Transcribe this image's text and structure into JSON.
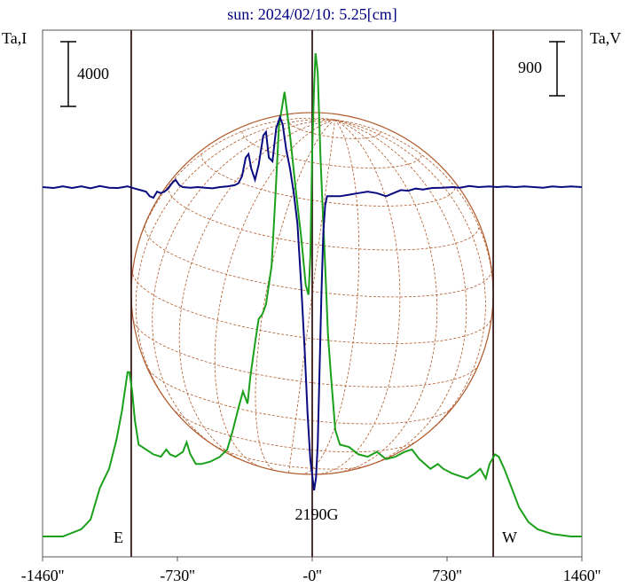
{
  "chart_data": {
    "type": "line",
    "title": "sun: 2024/02/10: 5.25[cm]",
    "left_axis_label": "Ta,I",
    "right_axis_label": "Ta,V",
    "left_scale_bar": "4000",
    "right_scale_bar": "900",
    "xlim": [
      -1460,
      1460
    ],
    "x_ticks": [
      {
        "value": -1460,
        "label": "-1460''"
      },
      {
        "value": -730,
        "label": "-730''"
      },
      {
        "value": 0,
        "label": "-0''"
      },
      {
        "value": 730,
        "label": "730''"
      },
      {
        "value": 1460,
        "label": "1460''"
      }
    ],
    "limb_markers": [
      {
        "value": -980,
        "label": "E"
      },
      {
        "value": 0,
        "label": ""
      },
      {
        "value": 980,
        "label": "W"
      }
    ],
    "field_annotation": "2190G",
    "solar_disk_radius_arcsec": 980,
    "colors": {
      "intensity": "#1aa01a",
      "polarization": "#0a0a80",
      "disk": "#b05a2a",
      "markers": "#3a1a1a",
      "title": "#000080"
    },
    "series": [
      {
        "key": "intensity",
        "relative_scale": [
          0,
          1
        ],
        "points": [
          [
            -1460,
            0.0
          ],
          [
            -1350,
            0.0
          ],
          [
            -1250,
            0.015
          ],
          [
            -1200,
            0.035
          ],
          [
            -1150,
            0.1
          ],
          [
            -1100,
            0.14
          ],
          [
            -1060,
            0.2
          ],
          [
            -1030,
            0.26
          ],
          [
            -1000,
            0.34
          ],
          [
            -990,
            0.34
          ],
          [
            -975,
            0.3
          ],
          [
            -960,
            0.24
          ],
          [
            -940,
            0.19
          ],
          [
            -900,
            0.18
          ],
          [
            -860,
            0.17
          ],
          [
            -820,
            0.165
          ],
          [
            -790,
            0.18
          ],
          [
            -770,
            0.17
          ],
          [
            -740,
            0.165
          ],
          [
            -700,
            0.175
          ],
          [
            -680,
            0.195
          ],
          [
            -660,
            0.17
          ],
          [
            -630,
            0.15
          ],
          [
            -600,
            0.15
          ],
          [
            -550,
            0.155
          ],
          [
            -500,
            0.165
          ],
          [
            -460,
            0.18
          ],
          [
            -430,
            0.22
          ],
          [
            -400,
            0.265
          ],
          [
            -375,
            0.3
          ],
          [
            -350,
            0.275
          ],
          [
            -335,
            0.33
          ],
          [
            -310,
            0.4
          ],
          [
            -290,
            0.45
          ],
          [
            -270,
            0.46
          ],
          [
            -250,
            0.48
          ],
          [
            -220,
            0.56
          ],
          [
            -200,
            0.7
          ],
          [
            -180,
            0.85
          ],
          [
            -150,
            0.92
          ],
          [
            -120,
            0.83
          ],
          [
            -90,
            0.72
          ],
          [
            -60,
            0.62
          ],
          [
            -35,
            0.52
          ],
          [
            -20,
            0.5
          ],
          [
            -10,
            0.58
          ],
          [
            0,
            0.8
          ],
          [
            10,
            0.93
          ],
          [
            18,
            1.0
          ],
          [
            30,
            0.96
          ],
          [
            45,
            0.78
          ],
          [
            70,
            0.56
          ],
          [
            85,
            0.42
          ],
          [
            100,
            0.34
          ],
          [
            125,
            0.22
          ],
          [
            150,
            0.19
          ],
          [
            200,
            0.185
          ],
          [
            250,
            0.17
          ],
          [
            300,
            0.165
          ],
          [
            350,
            0.175
          ],
          [
            400,
            0.16
          ],
          [
            450,
            0.165
          ],
          [
            500,
            0.175
          ],
          [
            540,
            0.18
          ],
          [
            580,
            0.16
          ],
          [
            640,
            0.14
          ],
          [
            680,
            0.15
          ],
          [
            710,
            0.14
          ],
          [
            760,
            0.13
          ],
          [
            800,
            0.125
          ],
          [
            840,
            0.12
          ],
          [
            880,
            0.13
          ],
          [
            910,
            0.14
          ],
          [
            940,
            0.12
          ],
          [
            960,
            0.15
          ],
          [
            990,
            0.17
          ],
          [
            1010,
            0.165
          ],
          [
            1040,
            0.14
          ],
          [
            1080,
            0.1
          ],
          [
            1120,
            0.06
          ],
          [
            1170,
            0.03
          ],
          [
            1220,
            0.015
          ],
          [
            1300,
            0.005
          ],
          [
            1400,
            0.0
          ],
          [
            1460,
            0.0
          ]
        ]
      },
      {
        "key": "polarization",
        "relative_scale": [
          -1,
          1
        ],
        "points": [
          [
            -1460,
            0.0
          ],
          [
            -1400,
            -0.003
          ],
          [
            -1350,
            0.002
          ],
          [
            -1300,
            -0.003
          ],
          [
            -1250,
            0.002
          ],
          [
            -1200,
            -0.004
          ],
          [
            -1150,
            0.003
          ],
          [
            -1100,
            -0.002
          ],
          [
            -1050,
            -0.003
          ],
          [
            -1000,
            0.002
          ],
          [
            -960,
            -0.005
          ],
          [
            -930,
            -0.01
          ],
          [
            -900,
            -0.015
          ],
          [
            -880,
            -0.03
          ],
          [
            -860,
            -0.035
          ],
          [
            -840,
            -0.015
          ],
          [
            -820,
            -0.02
          ],
          [
            -800,
            -0.015
          ],
          [
            -780,
            -0.005
          ],
          [
            -760,
            0.01
          ],
          [
            -740,
            0.02
          ],
          [
            -720,
            0.005
          ],
          [
            -700,
            0.0
          ],
          [
            -660,
            -0.002
          ],
          [
            -620,
            0.0
          ],
          [
            -580,
            -0.002
          ],
          [
            -540,
            -0.004
          ],
          [
            -500,
            0.0
          ],
          [
            -460,
            0.002
          ],
          [
            -420,
            0.005
          ],
          [
            -400,
            0.01
          ],
          [
            -380,
            0.03
          ],
          [
            -360,
            0.08
          ],
          [
            -345,
            0.09
          ],
          [
            -330,
            0.05
          ],
          [
            -310,
            0.02
          ],
          [
            -290,
            0.06
          ],
          [
            -265,
            0.14
          ],
          [
            -250,
            0.15
          ],
          [
            -235,
            0.08
          ],
          [
            -215,
            0.07
          ],
          [
            -195,
            0.16
          ],
          [
            -175,
            0.19
          ],
          [
            -160,
            0.17
          ],
          [
            -140,
            0.1
          ],
          [
            -120,
            0.05
          ],
          [
            -100,
            -0.02
          ],
          [
            -80,
            -0.12
          ],
          [
            -60,
            -0.32
          ],
          [
            -40,
            -0.55
          ],
          [
            -25,
            -0.75
          ],
          [
            -10,
            -0.9
          ],
          [
            0,
            -0.95
          ],
          [
            10,
            -1.0
          ],
          [
            20,
            -0.96
          ],
          [
            30,
            -0.85
          ],
          [
            40,
            -0.6
          ],
          [
            50,
            -0.35
          ],
          [
            60,
            -0.15
          ],
          [
            70,
            -0.06
          ],
          [
            80,
            -0.03
          ],
          [
            100,
            -0.03
          ],
          [
            150,
            -0.03
          ],
          [
            200,
            -0.025
          ],
          [
            250,
            -0.02
          ],
          [
            300,
            -0.015
          ],
          [
            350,
            -0.02
          ],
          [
            400,
            -0.03
          ],
          [
            440,
            -0.02
          ],
          [
            480,
            -0.01
          ],
          [
            520,
            -0.012
          ],
          [
            560,
            -0.005
          ],
          [
            600,
            -0.008
          ],
          [
            650,
            -0.003
          ],
          [
            700,
            -0.002
          ],
          [
            760,
            0.0
          ],
          [
            800,
            -0.002
          ],
          [
            850,
            0.003
          ],
          [
            900,
            0.0
          ],
          [
            960,
            0.002
          ],
          [
            1000,
            0.0
          ],
          [
            1050,
            0.002
          ],
          [
            1100,
            0.0
          ],
          [
            1150,
            0.002
          ],
          [
            1200,
            0.0
          ],
          [
            1250,
            -0.002
          ],
          [
            1300,
            0.002
          ],
          [
            1350,
            0.0
          ],
          [
            1400,
            0.002
          ],
          [
            1460,
            0.0
          ]
        ]
      }
    ]
  }
}
